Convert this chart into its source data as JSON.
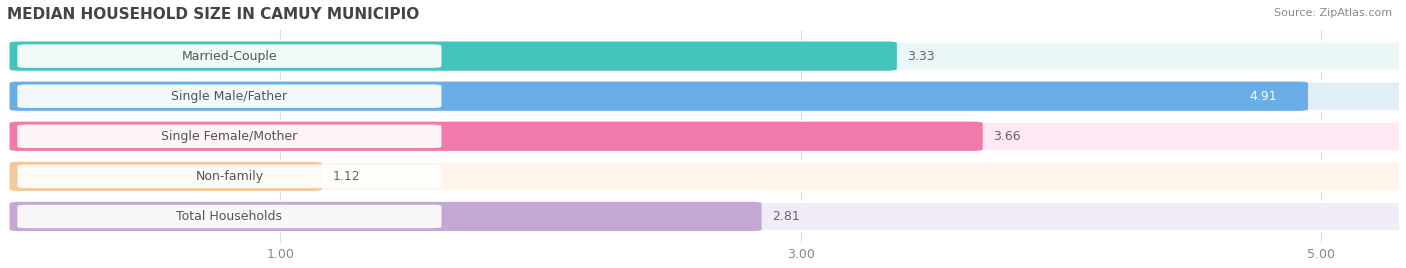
{
  "title": "MEDIAN HOUSEHOLD SIZE IN CAMUY MUNICIPIO",
  "source": "Source: ZipAtlas.com",
  "categories": [
    "Married-Couple",
    "Single Male/Father",
    "Single Female/Mother",
    "Non-family",
    "Total Households"
  ],
  "values": [
    3.33,
    4.91,
    3.66,
    1.12,
    2.81
  ],
  "bar_colors": [
    "#45c4bc",
    "#6aaee8",
    "#f07aaa",
    "#f5c899",
    "#c4a8d4"
  ],
  "bar_bg_colors": [
    "#eaf7f6",
    "#e0eef8",
    "#fde8f3",
    "#fef5ea",
    "#f2ecf7"
  ],
  "xlim_min": 0.0,
  "xlim_max": 5.3,
  "xticks": [
    1.0,
    3.0,
    5.0
  ],
  "xtick_labels": [
    "1.00",
    "3.00",
    "5.00"
  ],
  "value_fontsize": 9,
  "label_fontsize": 9,
  "title_fontsize": 11,
  "source_fontsize": 8,
  "bar_height": 0.65,
  "background_color": "#ffffff",
  "label_pill_color": "#ffffff",
  "grid_color": "#dddddd"
}
